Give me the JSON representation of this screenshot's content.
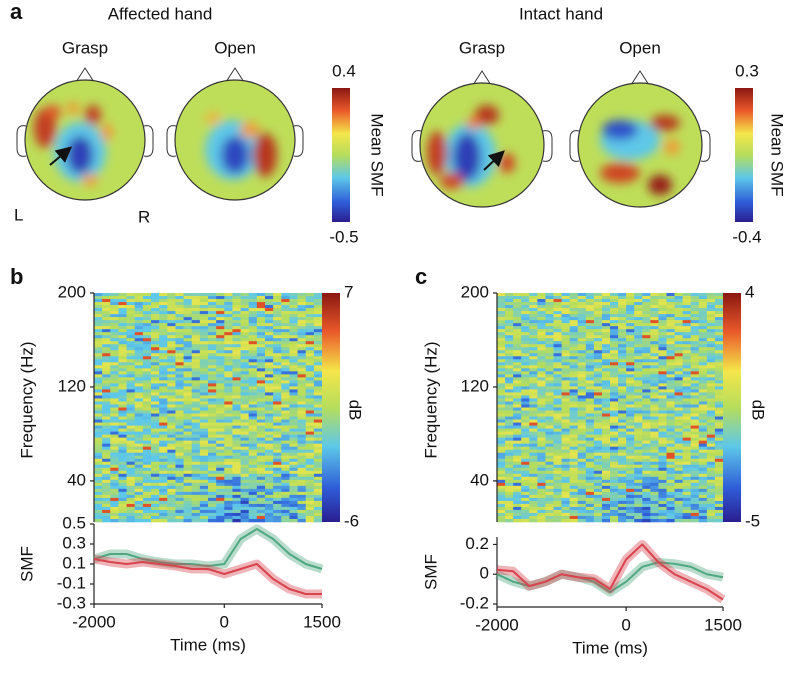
{
  "panel_a": {
    "label": "a",
    "side_left": "L",
    "side_right": "R",
    "groups": [
      {
        "title": "Affected hand",
        "maps": [
          "Grasp",
          "Open"
        ],
        "colorbar": {
          "label": "Mean SMF",
          "lim": [
            -0.5,
            0.4
          ],
          "ticks": [
            -0.5,
            0.4
          ]
        }
      },
      {
        "title": "Intact hand",
        "maps": [
          "Grasp",
          "Open"
        ],
        "colorbar": {
          "label": "Mean SMF",
          "lim": [
            -0.4,
            0.3
          ],
          "ticks": [
            -0.4,
            0.3
          ]
        }
      }
    ]
  },
  "chart_data": [
    {
      "type": "line",
      "panel_label": "b",
      "spectrogram": {
        "ylabel": "Frequency (Hz)",
        "ylim": [
          5,
          200
        ],
        "yticks": [
          40,
          120,
          200
        ],
        "colorbar": {
          "label": "dB",
          "lim": [
            -6,
            7
          ],
          "ticks": [
            -6,
            7
          ]
        }
      },
      "ylabel": "SMF",
      "xlabel": "Time (ms)",
      "xlim": [
        -2000,
        1500
      ],
      "xticks": [
        -2000,
        0,
        1500
      ],
      "ylim": [
        -0.3,
        0.5
      ],
      "yticks": [
        -0.3,
        -0.1,
        0.1,
        0.3,
        0.5
      ],
      "x": [
        -2000,
        -1750,
        -1500,
        -1250,
        -1000,
        -750,
        -500,
        -250,
        0,
        250,
        500,
        750,
        1000,
        1250,
        1500
      ],
      "series": [
        {
          "color": "#4fa882",
          "values": [
            0.15,
            0.2,
            0.2,
            0.15,
            0.12,
            0.1,
            0.1,
            0.08,
            0.1,
            0.35,
            0.45,
            0.35,
            0.2,
            0.1,
            0.05
          ]
        },
        {
          "color": "#d8434d",
          "values": [
            0.15,
            0.12,
            0.1,
            0.12,
            0.1,
            0.08,
            0.05,
            0.05,
            0.0,
            0.05,
            0.1,
            -0.05,
            -0.15,
            -0.2,
            -0.2
          ]
        }
      ]
    },
    {
      "type": "line",
      "panel_label": "c",
      "spectrogram": {
        "ylabel": "Frequency (Hz)",
        "ylim": [
          5,
          200
        ],
        "yticks": [
          40,
          120,
          200
        ],
        "colorbar": {
          "label": "dB",
          "lim": [
            -5,
            4
          ],
          "ticks": [
            -5,
            4
          ]
        }
      },
      "ylabel": "SMF",
      "xlabel": "Time (ms)",
      "xlim": [
        -2000,
        1500
      ],
      "xticks": [
        -2000,
        0,
        1500
      ],
      "ylim": [
        -0.22,
        0.25
      ],
      "yticks": [
        -0.2,
        0,
        0.2
      ],
      "x": [
        -2000,
        -1750,
        -1500,
        -1250,
        -1000,
        -750,
        -500,
        -250,
        0,
        250,
        500,
        750,
        1000,
        1250,
        1500
      ],
      "series": [
        {
          "color": "#4fa882",
          "values": [
            0.0,
            -0.05,
            -0.08,
            -0.05,
            0.0,
            -0.02,
            -0.05,
            -0.12,
            -0.05,
            0.05,
            0.08,
            0.07,
            0.05,
            0.0,
            -0.02
          ]
        },
        {
          "color": "#d8434d",
          "values": [
            0.03,
            0.02,
            -0.08,
            -0.05,
            0.0,
            -0.02,
            -0.03,
            -0.1,
            0.1,
            0.2,
            0.08,
            0.0,
            -0.05,
            -0.1,
            -0.17
          ]
        }
      ]
    }
  ]
}
